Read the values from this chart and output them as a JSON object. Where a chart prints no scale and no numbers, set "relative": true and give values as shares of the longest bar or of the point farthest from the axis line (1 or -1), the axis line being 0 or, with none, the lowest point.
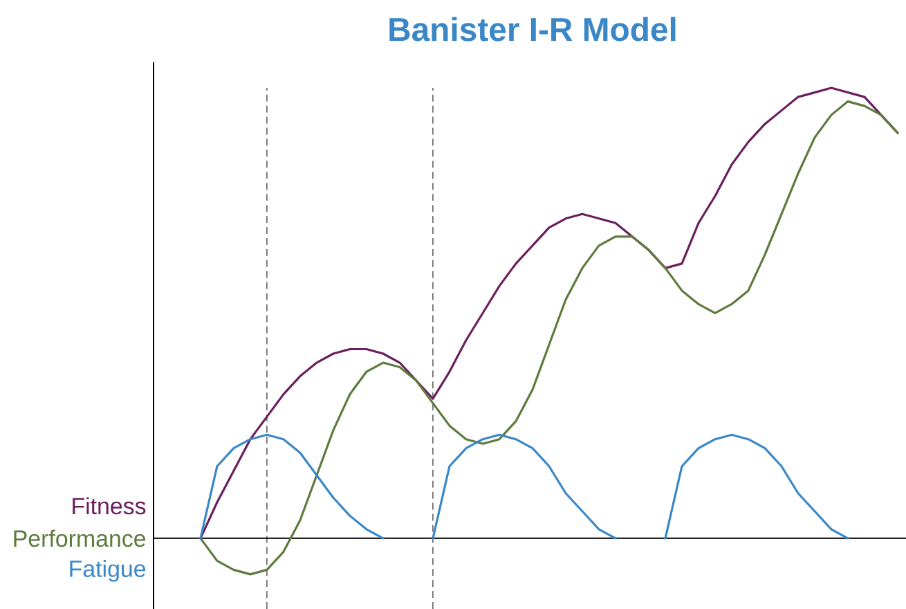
{
  "chart_data": {
    "type": "line",
    "title": "Banister I-R Model",
    "relative": true,
    "marker": "none",
    "line_style": "solid",
    "categories": [
      null,
      null,
      null,
      null,
      null,
      null,
      null,
      null,
      null,
      null,
      null,
      null,
      null,
      null,
      null,
      null,
      null,
      null,
      null,
      null,
      null,
      null,
      null,
      null,
      null,
      null,
      null,
      null,
      null,
      null,
      null,
      null,
      null,
      null,
      null,
      null,
      null,
      null,
      null,
      null,
      null,
      null,
      null
    ],
    "series": [
      {
        "name": "Fitness",
        "color": "#6a1f5e",
        "values": [
          0,
          0.08,
          0.15,
          0.22,
          0.27,
          0.32,
          0.36,
          0.39,
          0.41,
          0.42,
          0.42,
          0.41,
          0.39,
          0.35,
          0.31,
          0.37,
          0.44,
          0.5,
          0.56,
          0.61,
          0.65,
          0.69,
          0.71,
          0.72,
          0.71,
          0.7,
          0.67,
          0.64,
          0.6,
          0.61,
          0.7,
          0.76,
          0.83,
          0.88,
          0.92,
          0.95,
          0.98,
          0.99,
          1.0,
          0.99,
          0.98,
          0.94,
          0.9
        ]
      },
      {
        "name": "Performance",
        "color": "#5e7a3c",
        "values": [
          0,
          -0.05,
          -0.07,
          -0.08,
          -0.07,
          -0.03,
          0.04,
          0.14,
          0.24,
          0.32,
          0.37,
          0.39,
          0.38,
          0.35,
          0.3,
          0.25,
          0.22,
          0.21,
          0.22,
          0.26,
          0.33,
          0.43,
          0.53,
          0.6,
          0.65,
          0.67,
          0.67,
          0.64,
          0.6,
          0.55,
          0.52,
          0.5,
          0.52,
          0.55,
          0.63,
          0.72,
          0.81,
          0.89,
          0.94,
          0.97,
          0.96,
          0.94,
          0.9
        ]
      },
      {
        "name": "Fatigue",
        "color": "#3a87c8",
        "values": [
          0,
          0.16,
          0.2,
          0.22,
          0.23,
          0.22,
          0.19,
          0.14,
          0.09,
          0.05,
          0.02,
          0,
          null,
          null,
          0,
          0.16,
          0.2,
          0.22,
          0.23,
          0.22,
          0.2,
          0.16,
          0.1,
          0.06,
          0.02,
          0,
          null,
          null,
          0,
          0.16,
          0.2,
          0.22,
          0.23,
          0.22,
          0.2,
          0.16,
          0.1,
          0.06,
          0.02,
          0,
          null,
          null,
          null
        ]
      }
    ]
  }
}
